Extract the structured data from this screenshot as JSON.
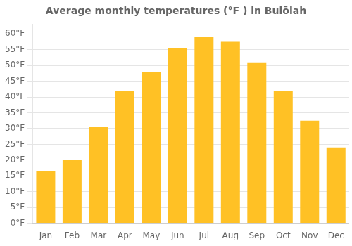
{
  "chart_data": {
    "type": "bar",
    "title": "Average monthly temperatures (°F ) in Bulōlah",
    "categories": [
      "Jan",
      "Feb",
      "Mar",
      "Apr",
      "May",
      "Jun",
      "Jul",
      "Aug",
      "Sep",
      "Oct",
      "Nov",
      "Dec"
    ],
    "values": [
      16.5,
      20.0,
      30.5,
      42.0,
      48.0,
      55.5,
      59.0,
      57.5,
      51.0,
      42.0,
      32.5,
      24.0
    ],
    "color": "#FFC125",
    "ylim": [
      0,
      63
    ],
    "yticks": [
      {
        "value": 0,
        "label": "0°F"
      },
      {
        "value": 5,
        "label": "5°F"
      },
      {
        "value": 10,
        "label": "10°F"
      },
      {
        "value": 15,
        "label": "15°F"
      },
      {
        "value": 20,
        "label": "20°F"
      },
      {
        "value": 25,
        "label": "25°F"
      },
      {
        "value": 30,
        "label": "30°F"
      },
      {
        "value": 35,
        "label": "35°F"
      },
      {
        "value": 40,
        "label": "40°F"
      },
      {
        "value": 45,
        "label": "45°F"
      },
      {
        "value": 50,
        "label": "50°F"
      },
      {
        "value": 55,
        "label": "55°F"
      },
      {
        "value": 60,
        "label": "60°F"
      }
    ],
    "grid": true
  }
}
